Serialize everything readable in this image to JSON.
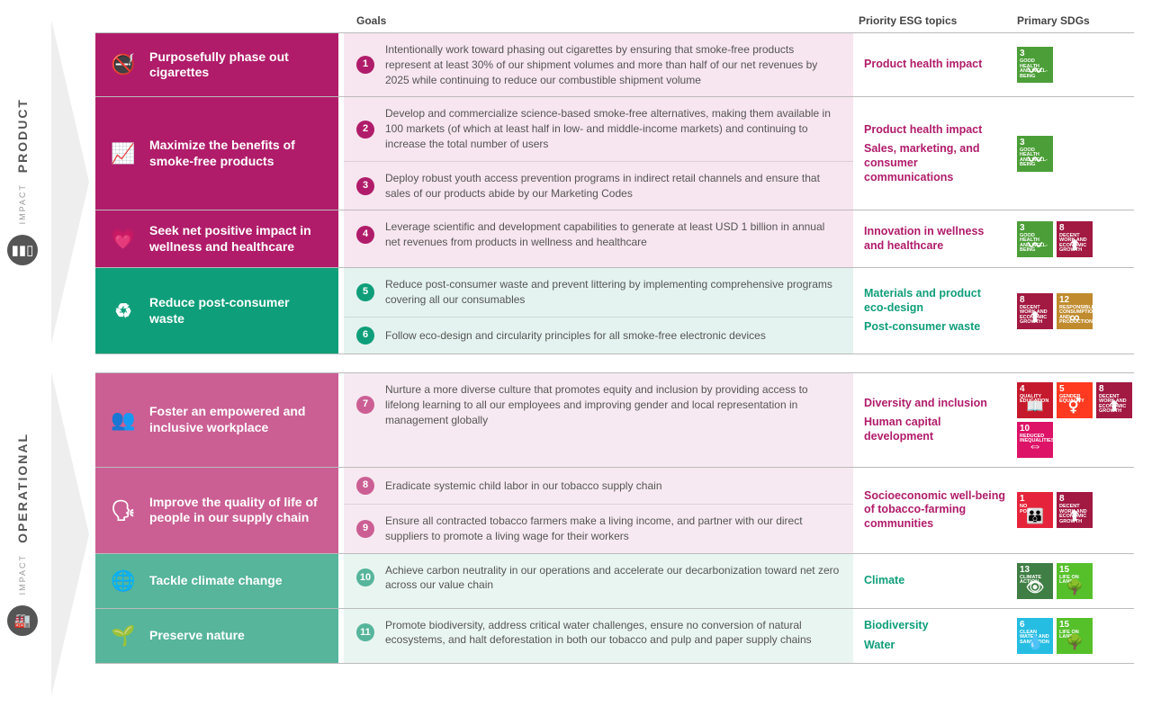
{
  "headers": {
    "goals": "Goals",
    "esg": "Priority ESG topics",
    "sdgs": "Primary SDGs"
  },
  "sections": [
    {
      "label": "PRODUCT",
      "sublabel": "IMPACT",
      "badge_icon": "▮▮▯",
      "rows": [
        {
          "pillar": "Purposefully phase out cigarettes",
          "pillar_bg": "#b01c6a",
          "goal_bg": "#f7e5ef",
          "accent": "#b01c6a",
          "icon": "🚭",
          "goals": [
            {
              "n": "1",
              "text": "Intentionally work toward phasing out cigarettes by ensuring that smoke-free products represent at least 30% of our shipment volumes and more than half of our net revenues by 2025 while continuing to reduce our combustible shipment volume"
            }
          ],
          "esg": [
            "Product health impact"
          ],
          "esg_color": "#b01c6a",
          "sdgs": [
            {
              "n": "3",
              "t": "GOOD HEALTH AND WELL-BEING",
              "bg": "#4c9f38",
              "ic": "〰"
            }
          ]
        },
        {
          "pillar": "Maximize the benefits of smoke-free products",
          "pillar_bg": "#b01c6a",
          "goal_bg": "#f7e5ef",
          "accent": "#b01c6a",
          "icon": "📈",
          "goals": [
            {
              "n": "2",
              "text": "Develop and commercialize science-based smoke-free alternatives, making them available in 100 markets (of which at least half in low- and middle-income markets) and continuing to increase the total number of users"
            },
            {
              "n": "3",
              "text": "Deploy robust youth access prevention programs in indirect retail channels and ensure that sales of our products abide by our Marketing Codes"
            }
          ],
          "esg": [
            "Product health impact",
            "Sales, marketing, and consumer communications"
          ],
          "esg_color": "#b01c6a",
          "sdgs": [
            {
              "n": "3",
              "t": "GOOD HEALTH AND WELL-BEING",
              "bg": "#4c9f38",
              "ic": "〰"
            }
          ]
        },
        {
          "pillar": "Seek net positive impact in wellness and healthcare",
          "pillar_bg": "#b01c6a",
          "goal_bg": "#f7e5ef",
          "accent": "#b01c6a",
          "icon": "💗",
          "goals": [
            {
              "n": "4",
              "text": "Leverage scientific and development capabilities to generate at least USD 1 billion in annual net revenues from products in wellness and healthcare"
            }
          ],
          "esg": [
            "Innovation in wellness and healthcare"
          ],
          "esg_color": "#b01c6a",
          "sdgs": [
            {
              "n": "3",
              "t": "GOOD HEALTH AND WELL-BEING",
              "bg": "#4c9f38",
              "ic": "〰"
            },
            {
              "n": "8",
              "t": "DECENT WORK AND ECONOMIC GROWTH",
              "bg": "#a21942",
              "ic": "⬆"
            }
          ]
        },
        {
          "pillar": "Reduce post-consumer waste",
          "pillar_bg": "#0f9e7a",
          "goal_bg": "#e4f3ef",
          "accent": "#0f9e7a",
          "icon": "♻",
          "goals": [
            {
              "n": "5",
              "text": "Reduce post-consumer waste and prevent littering by implementing comprehensive programs covering all our consumables"
            },
            {
              "n": "6",
              "text": "Follow eco-design and circularity principles for all smoke-free electronic devices"
            }
          ],
          "esg": [
            "Materials and product eco-design",
            "Post-consumer waste"
          ],
          "esg_color": "#0f9e7a",
          "sdgs": [
            {
              "n": "8",
              "t": "DECENT WORK AND ECONOMIC GROWTH",
              "bg": "#a21942",
              "ic": "⬆"
            },
            {
              "n": "12",
              "t": "RESPONSIBLE CONSUMPTION AND PRODUCTION",
              "bg": "#bf8b2e",
              "ic": "∞"
            }
          ]
        }
      ]
    },
    {
      "label": "OPERATIONAL",
      "sublabel": "IMPACT",
      "badge_icon": "🏭",
      "rows": [
        {
          "pillar": "Foster an empowered and inclusive workplace",
          "pillar_bg": "#cb5f94",
          "goal_bg": "#f7e9f1",
          "accent": "#cb5f94",
          "icon": "👥",
          "goals": [
            {
              "n": "7",
              "text": "Nurture a more diverse culture that promotes equity and inclusion by providing access to lifelong learning to all our employees and improving gender and local representation in management globally"
            }
          ],
          "esg": [
            "Diversity and inclusion",
            "Human capital development"
          ],
          "esg_color": "#b01c6a",
          "sdgs": [
            {
              "n": "4",
              "t": "QUALITY EDUCATION",
              "bg": "#c5192d",
              "ic": "📖"
            },
            {
              "n": "5",
              "t": "GENDER EQUALITY",
              "bg": "#ff3a21",
              "ic": "⚥"
            },
            {
              "n": "8",
              "t": "DECENT WORK AND ECONOMIC GROWTH",
              "bg": "#a21942",
              "ic": "⬆"
            },
            {
              "n": "10",
              "t": "REDUCED INEQUALITIES",
              "bg": "#dd1367",
              "ic": "⇔"
            }
          ]
        },
        {
          "pillar": "Improve the quality of life of people in our supply chain",
          "pillar_bg": "#cb5f94",
          "goal_bg": "#f7e9f1",
          "accent": "#cb5f94",
          "icon": "🗣",
          "goals": [
            {
              "n": "8",
              "text": "Eradicate systemic child labor in our tobacco supply chain"
            },
            {
              "n": "9",
              "text": "Ensure all contracted tobacco farmers make a living income, and partner with our direct suppliers to promote a living wage for their workers"
            }
          ],
          "esg": [
            "Socioeconomic well-being of tobacco-farming communities"
          ],
          "esg_color": "#b01c6a",
          "sdgs": [
            {
              "n": "1",
              "t": "NO POVERTY",
              "bg": "#e5243b",
              "ic": "👪"
            },
            {
              "n": "8",
              "t": "DECENT WORK AND ECONOMIC GROWTH",
              "bg": "#a21942",
              "ic": "⬆"
            }
          ]
        },
        {
          "pillar": "Tackle climate change",
          "pillar_bg": "#56b59b",
          "goal_bg": "#e9f5f1",
          "accent": "#56b59b",
          "icon": "🌐",
          "goals": [
            {
              "n": "10",
              "text": "Achieve carbon neutrality in our operations and accelerate our decarbonization toward net zero across our value chain"
            }
          ],
          "esg": [
            "Climate"
          ],
          "esg_color": "#0f9e7a",
          "sdgs": [
            {
              "n": "13",
              "t": "CLIMATE ACTION",
              "bg": "#3f7e44",
              "ic": "👁"
            },
            {
              "n": "15",
              "t": "LIFE ON LAND",
              "bg": "#56c02b",
              "ic": "🌳"
            }
          ]
        },
        {
          "pillar": "Preserve nature",
          "pillar_bg": "#56b59b",
          "goal_bg": "#e9f5f1",
          "accent": "#56b59b",
          "icon": "🌱",
          "goals": [
            {
              "n": "11",
              "text": "Promote biodiversity, address critical water challenges, ensure no conversion of natural ecosystems, and halt deforestation in both our tobacco and pulp and paper supply chains"
            }
          ],
          "esg": [
            "Biodiversity",
            "Water"
          ],
          "esg_color": "#0f9e7a",
          "sdgs": [
            {
              "n": "6",
              "t": "CLEAN WATER AND SANITATION",
              "bg": "#26bde2",
              "ic": "💧"
            },
            {
              "n": "15",
              "t": "LIFE ON LAND",
              "bg": "#56c02b",
              "ic": "🌳"
            }
          ]
        }
      ]
    }
  ]
}
